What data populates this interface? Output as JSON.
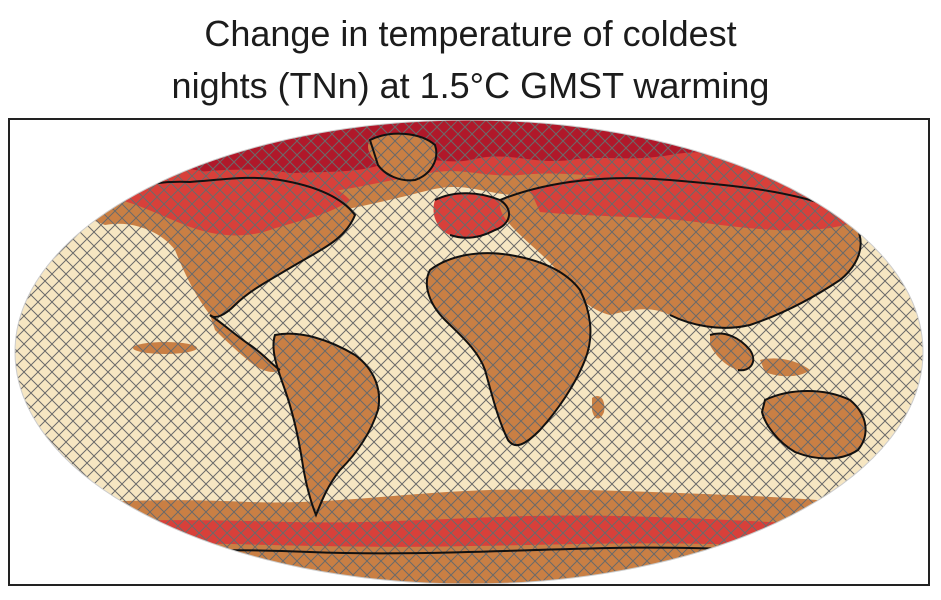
{
  "title": {
    "line1": "Change in temperature of coldest",
    "line2": "nights (TNn) at 1.5°C GMST warming"
  },
  "colors": {
    "ocean": "#f6e6c2",
    "land_moderate": "#c97f44",
    "high_latitude": "#d8403a",
    "extreme": "#b0182a",
    "hatch": "#6a6a6a",
    "coast": "#111111"
  },
  "map": {
    "projection": "robinson",
    "hatching": "cross-hatch over regions"
  }
}
